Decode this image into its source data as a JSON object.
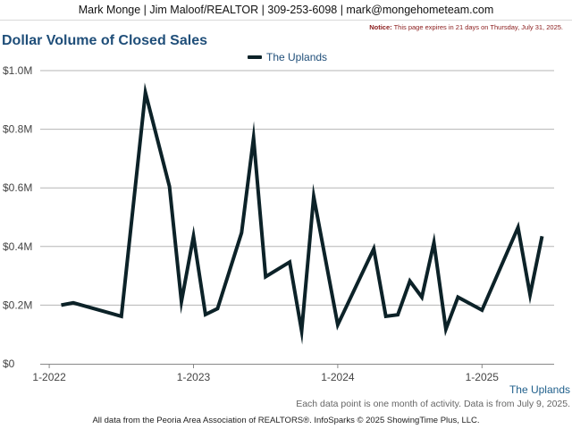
{
  "header": {
    "contact_line": "Mark Monge | Jim Maloof/REALTOR | 309-253-6098 | mark@mongehometeam.com"
  },
  "notice": {
    "label": "Notice:",
    "text": "This page expires in 21 days on Thursday, July 31, 2025."
  },
  "footer": {
    "series_tag": "The Uplands",
    "note": "Each data point is one month of activity. Data is from July 9, 2025.",
    "source": "All data from the Peoria Area Association of REALTORS®. InfoSparks © 2025 ShowingTime Plus, LLC."
  },
  "colors": {
    "line": "#0c2228",
    "title": "#1f4e79",
    "grid": "#b5b5b5"
  },
  "chart_data": {
    "type": "line",
    "title": "Dollar Volume of Closed Sales",
    "xlabel": "",
    "ylabel": "",
    "ylim": [
      0,
      1000000
    ],
    "grid": true,
    "legend_position": "top-center",
    "y_ticks": [
      {
        "value": 0,
        "label": "$0"
      },
      {
        "value": 200000,
        "label": "$0.2M"
      },
      {
        "value": 400000,
        "label": "$0.4M"
      },
      {
        "value": 600000,
        "label": "$0.6M"
      },
      {
        "value": 800000,
        "label": "$0.8M"
      },
      {
        "value": 1000000,
        "label": "$1.0M"
      }
    ],
    "x_ticks": [
      {
        "value": "2022-01",
        "label": "1-2022"
      },
      {
        "value": "2023-01",
        "label": "1-2023"
      },
      {
        "value": "2024-01",
        "label": "1-2024"
      },
      {
        "value": "2025-01",
        "label": "1-2025"
      }
    ],
    "x_range": [
      "2021-12",
      "2025-07"
    ],
    "series": [
      {
        "name": "The Uplands",
        "points": [
          {
            "x": "2022-02",
            "y": 200000
          },
          {
            "x": "2022-03",
            "y": 208000
          },
          {
            "x": "2022-07",
            "y": 162000
          },
          {
            "x": "2022-09",
            "y": 925000
          },
          {
            "x": "2022-11",
            "y": 605000
          },
          {
            "x": "2022-12",
            "y": 212000
          },
          {
            "x": "2023-01",
            "y": 435000
          },
          {
            "x": "2023-02",
            "y": 168000
          },
          {
            "x": "2023-03",
            "y": 188000
          },
          {
            "x": "2023-05",
            "y": 447000
          },
          {
            "x": "2023-06",
            "y": 770000
          },
          {
            "x": "2023-07",
            "y": 297000
          },
          {
            "x": "2023-09",
            "y": 347000
          },
          {
            "x": "2023-10",
            "y": 112000
          },
          {
            "x": "2023-11",
            "y": 570000
          },
          {
            "x": "2024-01",
            "y": 133000
          },
          {
            "x": "2024-04",
            "y": 392000
          },
          {
            "x": "2024-05",
            "y": 162000
          },
          {
            "x": "2024-06",
            "y": 167000
          },
          {
            "x": "2024-07",
            "y": 282000
          },
          {
            "x": "2024-08",
            "y": 227000
          },
          {
            "x": "2024-09",
            "y": 413000
          },
          {
            "x": "2024-10",
            "y": 118000
          },
          {
            "x": "2024-11",
            "y": 227000
          },
          {
            "x": "2025-01",
            "y": 183000
          },
          {
            "x": "2025-04",
            "y": 465000
          },
          {
            "x": "2025-05",
            "y": 235000
          },
          {
            "x": "2025-06",
            "y": 435000
          }
        ]
      }
    ]
  }
}
